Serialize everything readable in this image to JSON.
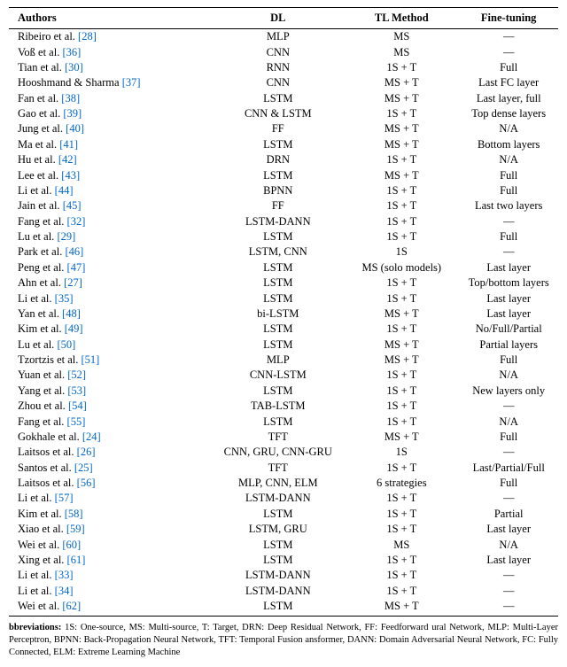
{
  "columns": [
    "Authors",
    "DL",
    "TL Method",
    "Fine-tuning"
  ],
  "col_widths": [
    "37%",
    "24%",
    "21%",
    "18%"
  ],
  "rows": [
    {
      "author": "Ribeiro et al.",
      "ref": "[28]",
      "dl": "MLP",
      "tl": "MS",
      "ft": "—"
    },
    {
      "author": "Voß et al.",
      "ref": "[36]",
      "dl": "CNN",
      "tl": "MS",
      "ft": "—"
    },
    {
      "author": "Tian et al.",
      "ref": "[30]",
      "dl": "RNN",
      "tl": "1S + T",
      "ft": "Full"
    },
    {
      "author": "Hooshmand & Sharma",
      "ref": "[37]",
      "dl": "CNN",
      "tl": "MS + T",
      "ft": "Last FC layer"
    },
    {
      "author": "Fan et al.",
      "ref": "[38]",
      "dl": "LSTM",
      "tl": "MS + T",
      "ft": "Last layer, full"
    },
    {
      "author": "Gao et al.",
      "ref": "[39]",
      "dl": "CNN & LSTM",
      "tl": "1S + T",
      "ft": "Top dense layers"
    },
    {
      "author": "Jung et al.",
      "ref": "[40]",
      "dl": "FF",
      "tl": "MS + T",
      "ft": "N/A"
    },
    {
      "author": "Ma et al.",
      "ref": "[41]",
      "dl": "LSTM",
      "tl": "MS + T",
      "ft": "Bottom layers"
    },
    {
      "author": "Hu et al.",
      "ref": "[42]",
      "dl": "DRN",
      "tl": "1S + T",
      "ft": "N/A"
    },
    {
      "author": "Lee et al.",
      "ref": "[43]",
      "dl": "LSTM",
      "tl": "MS + T",
      "ft": "Full"
    },
    {
      "author": "Li et al.",
      "ref": "[44]",
      "dl": "BPNN",
      "tl": "1S + T",
      "ft": "Full"
    },
    {
      "author": "Jain et al.",
      "ref": "[45]",
      "dl": "FF",
      "tl": "1S + T",
      "ft": "Last two layers"
    },
    {
      "author": "Fang et al.",
      "ref": "[32]",
      "dl": "LSTM-DANN",
      "tl": "1S + T",
      "ft": "—"
    },
    {
      "author": "Lu et al.",
      "ref": "[29]",
      "dl": "LSTM",
      "tl": "1S + T",
      "ft": "Full"
    },
    {
      "author": "Park et al.",
      "ref": "[46]",
      "dl": "LSTM, CNN",
      "tl": "1S",
      "ft": "—"
    },
    {
      "author": "Peng et al.",
      "ref": "[47]",
      "dl": "LSTM",
      "tl": "MS (solo models)",
      "ft": "Last layer"
    },
    {
      "author": "Ahn et al.",
      "ref": "[27]",
      "dl": "LSTM",
      "tl": "1S + T",
      "ft": "Top/bottom layers"
    },
    {
      "author": "Li et al.",
      "ref": "[35]",
      "dl": "LSTM",
      "tl": "1S + T",
      "ft": "Last layer"
    },
    {
      "author": "Yan et al.",
      "ref": "[48]",
      "dl": "bi-LSTM",
      "tl": "MS + T",
      "ft": "Last layer"
    },
    {
      "author": "Kim et al.",
      "ref": "[49]",
      "dl": "LSTM",
      "tl": "1S + T",
      "ft": "No/Full/Partial"
    },
    {
      "author": "Lu et al.",
      "ref": "[50]",
      "dl": "LSTM",
      "tl": "MS + T",
      "ft": "Partial layers"
    },
    {
      "author": "Tzortzis et al.",
      "ref": "[51]",
      "dl": "MLP",
      "tl": "MS + T",
      "ft": "Full"
    },
    {
      "author": "Yuan et al.",
      "ref": "[52]",
      "dl": "CNN-LSTM",
      "tl": "1S + T",
      "ft": "N/A"
    },
    {
      "author": "Yang et al.",
      "ref": "[53]",
      "dl": "LSTM",
      "tl": "1S + T",
      "ft": "New layers only"
    },
    {
      "author": "Zhou et al.",
      "ref": "[54]",
      "dl": "TAB-LSTM",
      "tl": "1S + T",
      "ft": "—"
    },
    {
      "author": "Fang et al.",
      "ref": "[55]",
      "dl": "LSTM",
      "tl": "1S + T",
      "ft": "N/A"
    },
    {
      "author": "Gokhale et al.",
      "ref": "[24]",
      "dl": "TFT",
      "tl": "MS + T",
      "ft": "Full"
    },
    {
      "author": "Laitsos et al.",
      "ref": "[26]",
      "dl": "CNN, GRU, CNN-GRU",
      "tl": "1S",
      "ft": "—"
    },
    {
      "author": "Santos et al.",
      "ref": "[25]",
      "dl": "TFT",
      "tl": "1S + T",
      "ft": "Last/Partial/Full"
    },
    {
      "author": "Laitsos et al.",
      "ref": "[56]",
      "dl": "MLP, CNN, ELM",
      "tl": "6 strategies",
      "ft": "Full"
    },
    {
      "author": "Li et al.",
      "ref": "[57]",
      "dl": "LSTM-DANN",
      "tl": "1S + T",
      "ft": "—"
    },
    {
      "author": "Kim et al.",
      "ref": "[58]",
      "dl": "LSTM",
      "tl": "1S + T",
      "ft": "Partial"
    },
    {
      "author": "Xiao et al.",
      "ref": "[59]",
      "dl": "LSTM, GRU",
      "tl": "1S + T",
      "ft": "Last layer"
    },
    {
      "author": "Wei et al.",
      "ref": "[60]",
      "dl": "LSTM",
      "tl": "MS",
      "ft": "N/A"
    },
    {
      "author": "Xing et al.",
      "ref": "[61]",
      "dl": "LSTM",
      "tl": "1S + T",
      "ft": "Last layer"
    },
    {
      "author": "Li et al.",
      "ref": "[33]",
      "dl": "LSTM-DANN",
      "tl": "1S + T",
      "ft": "—"
    },
    {
      "author": "Li et al.",
      "ref": "[34]",
      "dl": "LSTM-DANN",
      "tl": "1S + T",
      "ft": "—"
    },
    {
      "author": "Wei et al.",
      "ref": "[62]",
      "dl": "LSTM",
      "tl": "MS + T",
      "ft": "—"
    }
  ],
  "footnote_label": "bbreviations:",
  "footnote_text": "  1S: One-source, MS: Multi-source, T: Target, DRN: Deep Residual Network, FF: Feedforward\nural Network, MLP: Multi-Layer Perceptron, BPNN: Back-Propagation Neural Network, TFT: Temporal Fusion\nansformer, DANN: Domain Adversarial Neural Network, FC: Fully Connected, ELM: Extreme Learning Machine"
}
